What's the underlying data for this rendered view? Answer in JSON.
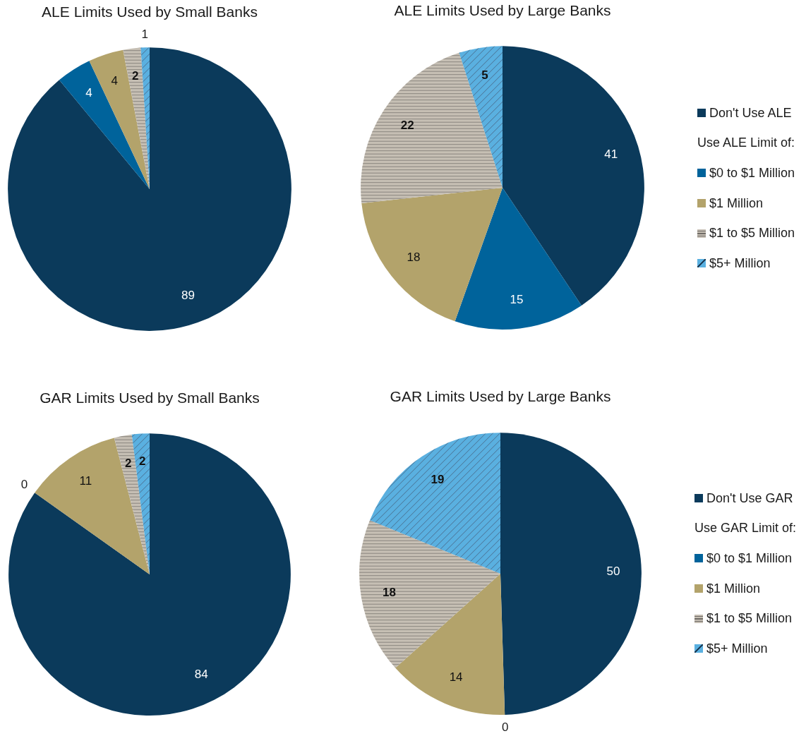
{
  "chart_data": [
    {
      "type": "pie",
      "title": "ALE Limits Used by Small Banks",
      "categories": [
        null,
        null,
        null,
        null,
        null
      ],
      "values": [
        89,
        4,
        4,
        2,
        1
      ],
      "colors": [
        "#0b3a5b",
        "#00639b",
        "#b3a36b",
        "#c6bfb4",
        "#5ab0e0"
      ],
      "data_labels": true
    },
    {
      "type": "pie",
      "title": "ALE Limits Used by Large Banks",
      "categories": [
        "Don't Use ALE",
        "$0 to $1 Million",
        "$1 Million",
        "$1 to $5 Million",
        "$5+ Million"
      ],
      "values": [
        41,
        15,
        18,
        22,
        5
      ],
      "colors": [
        "#0b3a5b",
        "#00639b",
        "#b3a36b",
        "#c6bfb4",
        "#5ab0e0"
      ],
      "data_labels": true,
      "legend": "right",
      "legend_title": "Use ALE Limit of:"
    },
    {
      "type": "pie",
      "title": "GAR Limits Used by Small Banks",
      "categories": [
        null,
        null,
        null,
        null,
        null
      ],
      "values": [
        84,
        0,
        11,
        2,
        2
      ],
      "value_labels": [
        "84",
        "0",
        "11",
        "2",
        "2"
      ],
      "colors": [
        "#0b3a5b",
        "#00639b",
        "#b3a36b",
        "#c6bfb4",
        "#5ab0e0"
      ]
    },
    {
      "type": "pie",
      "title": "GAR Limits Used by Large Banks",
      "categories": [
        "Don't Use GAR",
        "$0 to $1 Million",
        "$1 Million",
        "$1 to $5 Million",
        "$5+ Million"
      ],
      "values": [
        50,
        0,
        14,
        18,
        19
      ],
      "value_labels": [
        "50",
        "0",
        "14",
        "18",
        "19"
      ],
      "colors": [
        "#0b3a5b",
        "#00639b",
        "#b3a36b",
        "#c6bfb4",
        "#5ab0e0"
      ],
      "legend": "right",
      "legend_title": "Use GAR Limit of:"
    }
  ]
}
